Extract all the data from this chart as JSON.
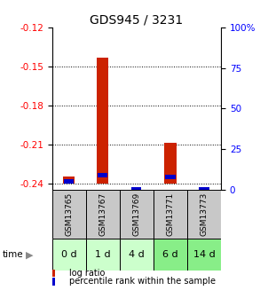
{
  "title": "GDS945 / 3231",
  "samples": [
    "GSM13765",
    "GSM13767",
    "GSM13769",
    "GSM13771",
    "GSM13773"
  ],
  "time_labels": [
    "0 d",
    "1 d",
    "4 d",
    "6 d",
    "14 d"
  ],
  "log_ratios": [
    -0.235,
    -0.143,
    -0.24,
    -0.209,
    -0.24
  ],
  "percentile_ranks": [
    5.0,
    9.0,
    0.0,
    8.0,
    0.0
  ],
  "ylim_left": [
    -0.245,
    -0.12
  ],
  "yticks_left": [
    -0.24,
    -0.21,
    -0.18,
    -0.15,
    -0.12
  ],
  "yticks_right": [
    0,
    25,
    50,
    75,
    100
  ],
  "bar_color_red": "#cc2200",
  "bar_color_blue": "#0000cc",
  "ref_value": -0.24,
  "percentile_scale_max": 100,
  "green_colors": [
    "#ccffcc",
    "#ccffcc",
    "#ccffcc",
    "#88ee88",
    "#88ee88"
  ],
  "sample_bg_color": "#c8c8c8",
  "title_fontsize": 10,
  "tick_fontsize": 7.5,
  "sample_fontsize": 6.5,
  "time_fontsize": 8,
  "legend_fontsize": 7
}
